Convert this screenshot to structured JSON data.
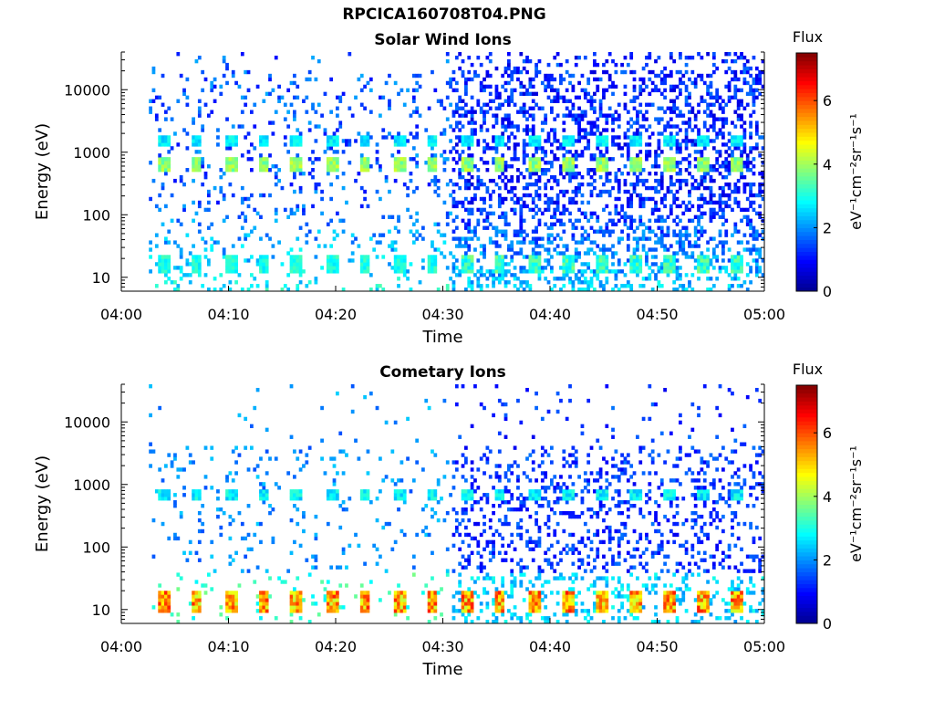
{
  "page_title": "RPCICA160708T04.PNG",
  "colors": {
    "colormap": "jet",
    "colormap_stops": [
      "#00008f",
      "#0000ff",
      "#00ffff",
      "#ffff00",
      "#ff0000",
      "#800000"
    ],
    "axis": "#000000",
    "background": "#ffffff"
  },
  "chart_data": [
    {
      "type": "heatmap",
      "title": "Solar Wind Ions",
      "xlabel": "Time",
      "ylabel": "Energy (eV)",
      "x_ticks": [
        "04:00",
        "04:10",
        "04:20",
        "04:30",
        "04:40",
        "04:50",
        "05:00"
      ],
      "xlim_minutes": [
        0,
        60
      ],
      "y_ticks": [
        "10",
        "100",
        "1000",
        "10000"
      ],
      "y_scale": "log",
      "ylim": [
        6,
        40000
      ],
      "colorbar": {
        "title": "Flux",
        "label": "eV⁻¹cm⁻²sr⁻¹s⁻¹",
        "ticks": [
          "0",
          "2",
          "4",
          "6"
        ],
        "range": [
          0,
          7.5
        ]
      },
      "bands": [
        {
          "energy": 650,
          "level": 3.8,
          "note": "repeating bright patches every ~3 min"
        },
        {
          "energy": 1500,
          "level": 2.6
        },
        {
          "energy": 16,
          "level": 3.0
        }
      ],
      "patch_times_minutes": [
        3.9,
        7,
        10.2,
        13.3,
        16.4,
        19.6,
        22.7,
        25.9,
        29,
        32.2,
        35.3,
        38.5,
        41.6,
        44.8,
        47.9,
        51.1,
        54.2,
        57.4
      ]
    },
    {
      "type": "heatmap",
      "title": "Cometary Ions",
      "xlabel": "Time",
      "ylabel": "Energy (eV)",
      "x_ticks": [
        "04:00",
        "04:10",
        "04:20",
        "04:30",
        "04:40",
        "04:50",
        "05:00"
      ],
      "xlim_minutes": [
        0,
        60
      ],
      "y_ticks": [
        "10",
        "100",
        "1000",
        "10000"
      ],
      "y_scale": "log",
      "ylim": [
        6,
        40000
      ],
      "colorbar": {
        "title": "Flux",
        "label": "eV⁻¹cm⁻²sr⁻¹s⁻¹",
        "ticks": [
          "0",
          "2",
          "4",
          "6"
        ],
        "range": [
          0,
          7.5
        ]
      },
      "bands": [
        {
          "energy": 14,
          "level": 5.2,
          "note": "strong low-energy patches"
        },
        {
          "energy": 650,
          "level": 2.8
        }
      ],
      "patch_times_minutes": [
        3.9,
        7,
        10.2,
        13.3,
        16.4,
        19.6,
        22.7,
        25.9,
        29,
        32.2,
        35.3,
        38.5,
        41.6,
        44.8,
        47.9,
        51.1,
        54.2,
        57.4
      ]
    }
  ]
}
